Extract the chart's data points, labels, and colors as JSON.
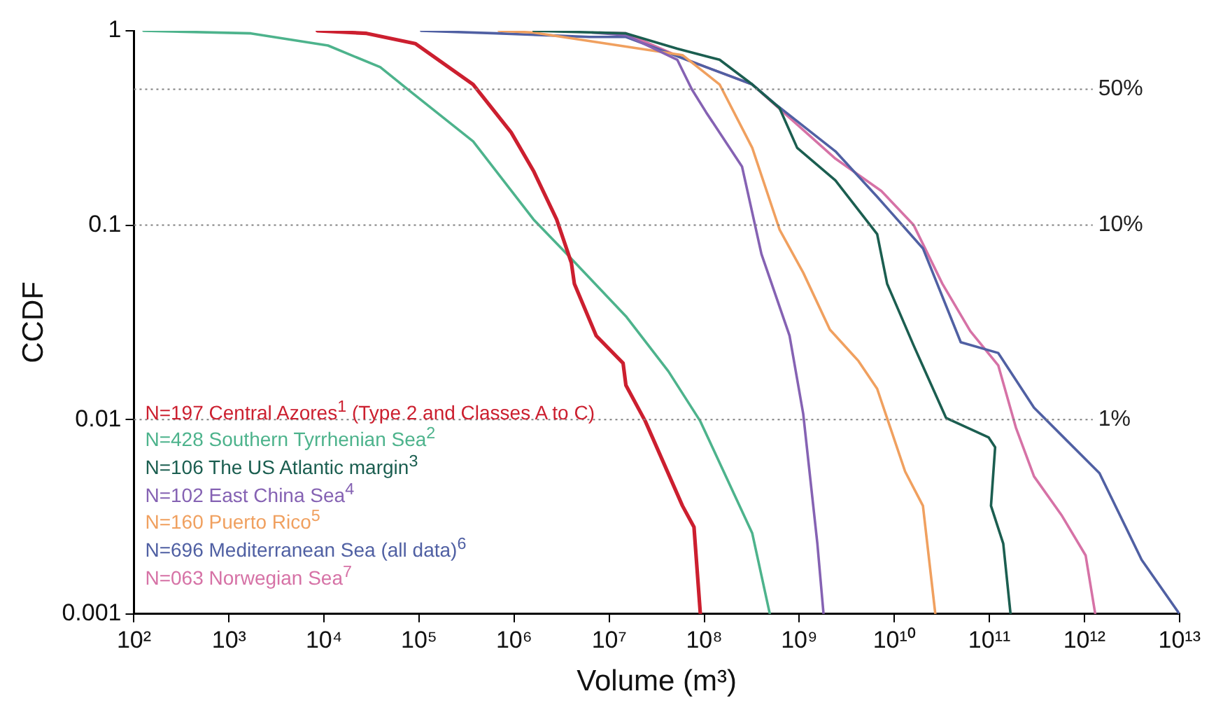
{
  "chart_data": {
    "type": "line",
    "xlabel": "Volume (m³)",
    "ylabel": "CCDF",
    "log": "xy",
    "grid": false,
    "legend": "bottom left",
    "marker": "none",
    "line_style": "solid",
    "xlim": [
      100,
      10000000000000
    ],
    "ylim": [
      0.001,
      1
    ],
    "xticks": [
      {
        "value": 100,
        "label": "10²"
      },
      {
        "value": 1000,
        "label": "10³"
      },
      {
        "value": 10000,
        "label": "10⁴"
      },
      {
        "value": 100000,
        "label": "10⁵"
      },
      {
        "value": 1000000,
        "label": "10⁶"
      },
      {
        "value": 10000000,
        "label": "10⁷"
      },
      {
        "value": 100000000,
        "label": "10⁸"
      },
      {
        "value": 1000000000,
        "label": "10⁹"
      },
      {
        "value": 10000000000,
        "label": "10¹⁰"
      },
      {
        "value": 100000000000,
        "label": "10¹¹"
      },
      {
        "value": 1000000000000,
        "label": "10¹²"
      },
      {
        "value": 10000000000000,
        "label": "10¹³"
      }
    ],
    "yticks": [
      0.001,
      0.01,
      0.1,
      1
    ],
    "ref_lines": [
      {
        "axis": "y",
        "value": 0.5,
        "label": "50%",
        "color": "#808080",
        "line_style": "dotted"
      },
      {
        "axis": "y",
        "value": 0.1,
        "label": "10%",
        "color": "#808080",
        "line_style": "dotted"
      },
      {
        "axis": "y",
        "value": 0.01,
        "label": "1%",
        "color": "#808080",
        "line_style": "dotted"
      }
    ],
    "series": [
      {
        "name": "N=197 Central Azores$^{1}$ (Type 2 and Classes A to C)",
        "color": "#cc1f2f",
        "x": [
          8500,
          28000,
          91000,
          370000,
          930000,
          1600000,
          2800000,
          4000000,
          4300000,
          7300000,
          14000000,
          15000000,
          24000000,
          59000000,
          78000000,
          91000000
        ],
        "values": [
          1,
          0.97,
          0.86,
          0.53,
          0.3,
          0.19,
          0.107,
          0.064,
          0.05,
          0.027,
          0.0195,
          0.015,
          0.0098,
          0.0036,
          0.0028,
          0.001
        ]
      },
      {
        "name": "N=428 Southern Tyrrhenian Sea$^{2}$",
        "color": "#4db38c",
        "x": [
          126,
          1700,
          11000,
          39000,
          76000,
          370000,
          1600000,
          3600000,
          15000000,
          42000000,
          91000000,
          320000000,
          490000000
        ],
        "values": [
          1,
          0.97,
          0.84,
          0.65,
          0.5,
          0.27,
          0.107,
          0.071,
          0.034,
          0.0177,
          0.0098,
          0.0026,
          0.001
        ]
      },
      {
        "name": "N=106 The US Atlantic margin$^{3}$",
        "color": "#1b5e50",
        "x": [
          1600000,
          15000000,
          52000000,
          145000000,
          320000000,
          620000000,
          950000000,
          2400000000,
          6600000000,
          8400000000,
          16000000000,
          35000000000,
          98000000000,
          115000000000,
          104000000000,
          140000000000,
          167000000000
        ],
        "values": [
          1,
          0.97,
          0.81,
          0.71,
          0.53,
          0.4,
          0.25,
          0.17,
          0.09,
          0.05,
          0.024,
          0.0102,
          0.0081,
          0.0072,
          0.0036,
          0.0023,
          0.001
        ]
      },
      {
        "name": "N=102 East China Sea$^{4}$",
        "color": "#8562b3",
        "x": [
          6600000,
          15000000,
          52000000,
          74000000,
          105000000,
          250000000,
          400000000,
          790000000,
          1100000000,
          1550000000,
          1800000000
        ],
        "values": [
          0.98,
          0.95,
          0.71,
          0.5,
          0.38,
          0.2,
          0.071,
          0.027,
          0.0107,
          0.0023,
          0.001
        ]
      },
      {
        "name": "N=160 Puerto Rico$^{5}$",
        "color": "#f0a05f",
        "x": [
          690000,
          1600000,
          59000000,
          145000000,
          320000000,
          620000000,
          1100000000,
          2100000000,
          4200000000,
          6600000000,
          13000000000,
          20000000000,
          27000000000
        ],
        "values": [
          1,
          0.98,
          0.75,
          0.53,
          0.25,
          0.095,
          0.057,
          0.029,
          0.02,
          0.0144,
          0.0054,
          0.0036,
          0.001
        ]
      },
      {
        "name": "N=696 Mediterranean Sea (all data)$^{6}$",
        "color": "#5060a3",
        "x": [
          105000,
          660000,
          6200000,
          15000000,
          65000000,
          320000000,
          560000000,
          2400000000,
          6600000000,
          20000000000,
          50000000000,
          124000000000,
          295000000000,
          1440000000000,
          4000000000000,
          10000000000000
        ],
        "values": [
          1,
          0.97,
          0.93,
          0.93,
          0.71,
          0.53,
          0.42,
          0.24,
          0.14,
          0.076,
          0.025,
          0.022,
          0.0115,
          0.0053,
          0.0019,
          0.001
        ]
      },
      {
        "name": "N=063 Norwegian Sea$^{7}$",
        "color": "#d672a6",
        "x": [
          7800000,
          15000000,
          65000000,
          320000000,
          2400000000,
          7300000000,
          16000000000,
          32000000000,
          63000000000,
          124000000000,
          190000000000,
          295000000000,
          580000000000,
          1030000000000,
          1300000000000
        ],
        "values": [
          0.98,
          0.97,
          0.71,
          0.53,
          0.22,
          0.15,
          0.1,
          0.05,
          0.0285,
          0.019,
          0.0091,
          0.0051,
          0.0032,
          0.002,
          0.001
        ]
      }
    ]
  }
}
